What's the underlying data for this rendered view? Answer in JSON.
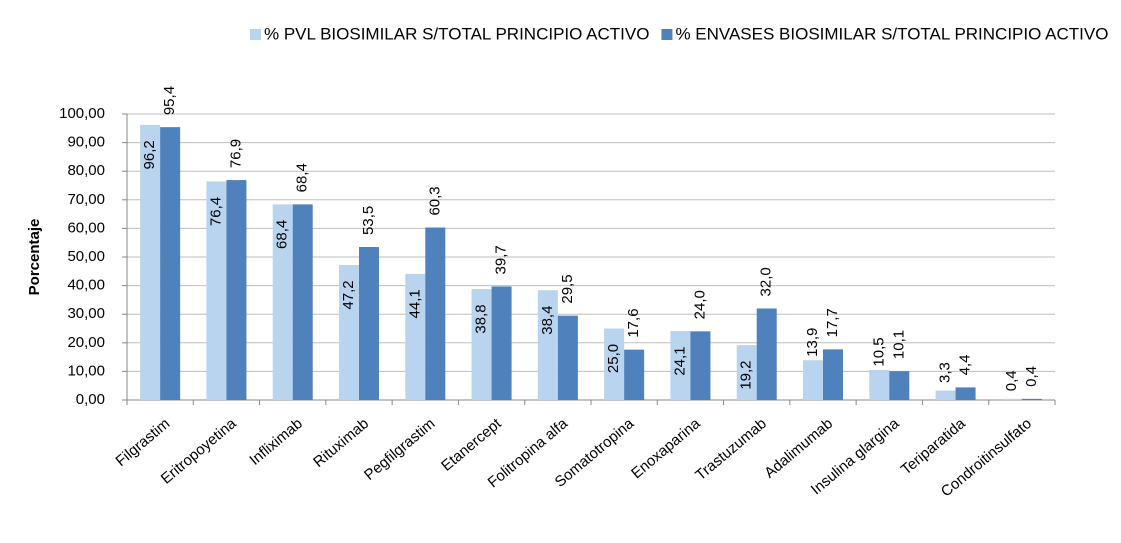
{
  "chart_data": {
    "type": "bar",
    "y_axis_label": "Porcentaje",
    "categories": [
      "Filgrastim",
      "Eritropoyetina",
      "Infliximab",
      "Rituximab",
      "Pegfilgrastim",
      "Etanercept",
      "Folitropina alfa",
      "Somatotropina",
      "Enoxaparina",
      "Trastuzumab",
      "Adalimumab",
      "Insulina glargina",
      "Teriparatida",
      "Condroitinsulfato"
    ],
    "series": [
      {
        "name": "% PVL BIOSIMILAR S/TOTAL PRINCIPIO ACTIVO",
        "color": "#b9d4ef",
        "values": [
          96.2,
          76.4,
          68.4,
          47.2,
          44.1,
          38.8,
          38.4,
          25.0,
          24.1,
          19.2,
          13.9,
          10.5,
          3.3,
          0.4
        ],
        "value_labels": [
          "96,2",
          "76,4",
          "68,4",
          "47,2",
          "44,1",
          "38,8",
          "38,4",
          "25,0",
          "24,1",
          "19,2",
          "13,9",
          "10,5",
          "3,3",
          "0,4"
        ]
      },
      {
        "name": "% ENVASES BIOSIMILAR S/TOTAL PRINCIPIO ACTIVO",
        "color": "#4f81bd",
        "values": [
          95.4,
          76.9,
          68.4,
          53.5,
          60.3,
          39.7,
          29.5,
          17.6,
          24.0,
          32.0,
          17.7,
          10.1,
          4.4,
          0.4
        ],
        "value_labels": [
          "95,4",
          "76,9",
          "68,4",
          "53,5",
          "60,3",
          "39,7",
          "29,5",
          "17,6",
          "24,0",
          "32,0",
          "17,7",
          "10,1",
          "4,4",
          "0,4"
        ]
      }
    ],
    "ylim": [
      0,
      100
    ],
    "yticks": [
      {
        "value": 0,
        "label": "0,00"
      },
      {
        "value": 10,
        "label": "10,00"
      },
      {
        "value": 20,
        "label": "20,00"
      },
      {
        "value": 30,
        "label": "30,00"
      },
      {
        "value": 40,
        "label": "40,00"
      },
      {
        "value": 50,
        "label": "50,00"
      },
      {
        "value": 60,
        "label": "60,00"
      },
      {
        "value": 70,
        "label": "70,00"
      },
      {
        "value": 80,
        "label": "80,00"
      },
      {
        "value": 90,
        "label": "90,00"
      },
      {
        "value": 100,
        "label": "100,00"
      }
    ],
    "grid": true
  }
}
